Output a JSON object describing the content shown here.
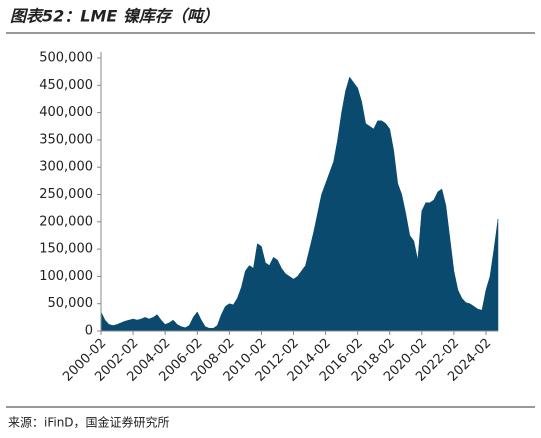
{
  "chart_data": {
    "type": "area",
    "title": "图表52：LME 镍库存（吨）",
    "source": "来源：iFinD，国金证券研究所",
    "categories": [
      "2000-02",
      null,
      null,
      null,
      null,
      null,
      null,
      null,
      "2002-02",
      null,
      null,
      null,
      null,
      null,
      null,
      null,
      "2004-02",
      null,
      null,
      null,
      null,
      null,
      null,
      null,
      "2006-02",
      null,
      null,
      null,
      null,
      null,
      null,
      null,
      "2008-02",
      null,
      null,
      null,
      null,
      null,
      null,
      null,
      "2010-02",
      null,
      null,
      null,
      null,
      null,
      null,
      null,
      "2012-02",
      null,
      null,
      null,
      null,
      null,
      null,
      null,
      "2014-02",
      null,
      null,
      null,
      null,
      null,
      null,
      null,
      "2016-02",
      null,
      null,
      null,
      null,
      null,
      null,
      null,
      "2018-02",
      null,
      null,
      null,
      null,
      null,
      null,
      null,
      "2020-02",
      null,
      null,
      null,
      null,
      null,
      null,
      null,
      "2022-02",
      null,
      null,
      null,
      null,
      null,
      null,
      null,
      "2024-02",
      null,
      null,
      null
    ],
    "color": "#0b4a6f",
    "values": [
      35000,
      20000,
      12000,
      10000,
      12000,
      15000,
      18000,
      20000,
      22000,
      20000,
      22000,
      25000,
      22000,
      25000,
      30000,
      20000,
      12000,
      15000,
      20000,
      12000,
      8000,
      6000,
      10000,
      25000,
      35000,
      20000,
      8000,
      5000,
      5000,
      10000,
      30000,
      45000,
      50000,
      48000,
      60000,
      80000,
      110000,
      120000,
      115000,
      160000,
      155000,
      125000,
      120000,
      135000,
      130000,
      115000,
      105000,
      100000,
      95000,
      100000,
      110000,
      120000,
      150000,
      180000,
      215000,
      250000,
      270000,
      290000,
      310000,
      350000,
      400000,
      440000,
      465000,
      455000,
      445000,
      420000,
      380000,
      375000,
      370000,
      385000,
      385000,
      380000,
      370000,
      330000,
      270000,
      250000,
      215000,
      175000,
      165000,
      130000,
      220000,
      235000,
      235000,
      240000,
      255000,
      260000,
      230000,
      170000,
      110000,
      75000,
      60000,
      52000,
      50000,
      45000,
      40000,
      38000,
      75000,
      100000,
      150000,
      205000
    ],
    "ylim": [
      0,
      500000
    ],
    "yticks": [
      0,
      {
        "value": 50000,
        "label": "50,000"
      },
      {
        "value": 100000,
        "label": "100,000"
      },
      {
        "value": 150000,
        "label": "150,000"
      },
      {
        "value": 200000,
        "label": "200,000"
      },
      {
        "value": 250000,
        "label": "250,000"
      },
      {
        "value": 300000,
        "label": "300,000"
      },
      {
        "value": 350000,
        "label": "350,000"
      },
      {
        "value": 400000,
        "label": "400,000"
      },
      {
        "value": 450000,
        "label": "450,000"
      },
      {
        "value": 500000,
        "label": "500,000"
      }
    ]
  }
}
